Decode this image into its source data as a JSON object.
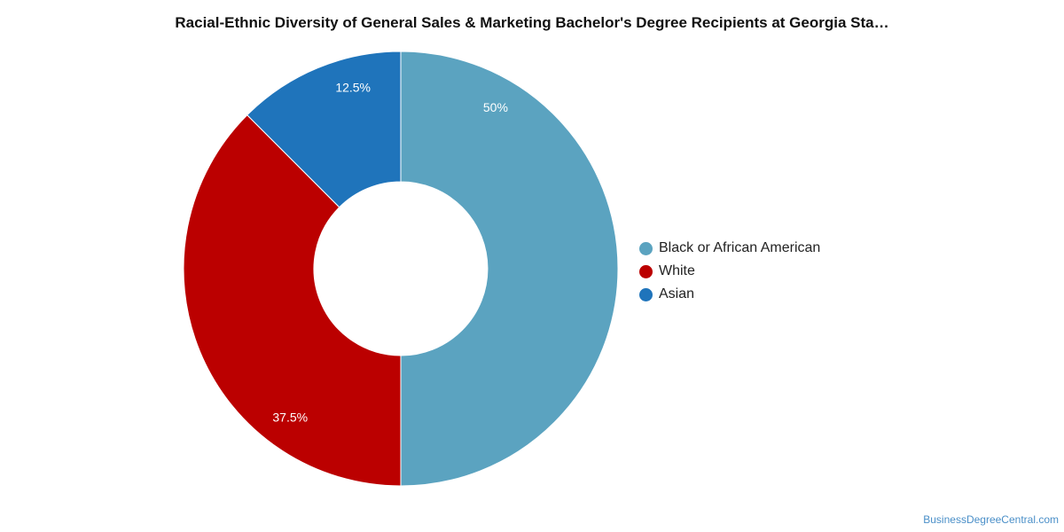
{
  "title": "Racial-Ethnic Diversity of General Sales & Marketing Bachelor's Degree Recipients at Georgia Sta…",
  "watermark": "BusinessDegreeCentral.com",
  "chart_data": {
    "type": "pie",
    "donut": true,
    "title": "Racial-Ethnic Diversity of General Sales & Marketing Bachelor's Degree Recipients at Georgia Sta…",
    "legend_position": "right",
    "slices": [
      {
        "label": "Black or African American",
        "value": 50,
        "display": "50%",
        "color": "#5ba3c0"
      },
      {
        "label": "White",
        "value": 37.5,
        "display": "37.5%",
        "color": "#bb0000"
      },
      {
        "label": "Asian",
        "value": 12.5,
        "display": "12.5%",
        "color": "#1f74bb"
      }
    ]
  }
}
